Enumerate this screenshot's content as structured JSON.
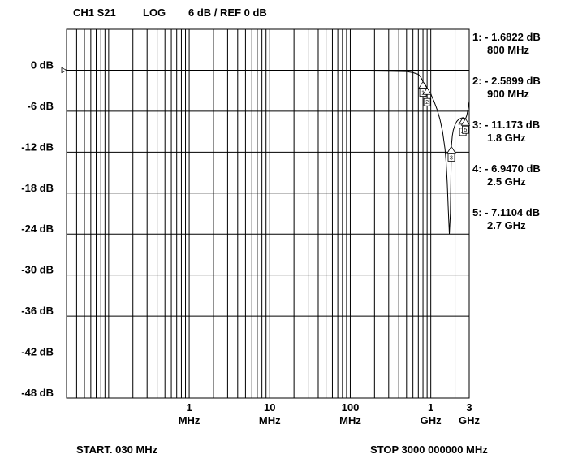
{
  "header": {
    "channel": "CH1 S21",
    "format": "LOG",
    "scale": "6 dB / REF 0 dB"
  },
  "footer": {
    "start": "START. 030 MHz",
    "stop": "STOP  3000 000000 MHz"
  },
  "chart_data": {
    "type": "line",
    "title": "",
    "xscale": "log",
    "xlim_mhz": [
      0.03,
      3000
    ],
    "ylim_db": [
      -48,
      6
    ],
    "grid": true,
    "reference_level_db": 0,
    "y_ticks": [
      {
        "value": 0,
        "label": "0 dB"
      },
      {
        "value": -6,
        "label": "-6 dB"
      },
      {
        "value": -12,
        "label": "-12 dB"
      },
      {
        "value": -18,
        "label": "-18 dB"
      },
      {
        "value": -24,
        "label": "-24 dB"
      },
      {
        "value": -30,
        "label": "-30 dB"
      },
      {
        "value": -36,
        "label": "-36 dB"
      },
      {
        "value": -42,
        "label": "-42 dB"
      },
      {
        "value": -48,
        "label": "-48 dB"
      }
    ],
    "x_ticks": [
      {
        "value": 1,
        "num": "1",
        "unit": "MHz"
      },
      {
        "value": 10,
        "num": "10",
        "unit": "MHz"
      },
      {
        "value": 100,
        "num": "100",
        "unit": "MHz"
      },
      {
        "value": 1000,
        "num": "1",
        "unit": "GHz"
      },
      {
        "value": 3000,
        "num": "3",
        "unit": "GHz"
      }
    ],
    "series": [
      {
        "x": [
          0.03,
          1,
          10,
          100,
          300,
          500,
          600,
          700,
          750,
          800,
          850,
          900,
          1000,
          1100,
          1200,
          1300,
          1400,
          1500,
          1550,
          1600,
          1650,
          1700,
          1750,
          1800,
          1850,
          1900,
          2000,
          2100,
          2200,
          2300,
          2400,
          2500,
          2600,
          2700,
          2800,
          2900,
          3000
        ],
        "y": [
          -0.1,
          -0.1,
          -0.1,
          -0.1,
          -0.15,
          -0.2,
          -0.35,
          -0.6,
          -1.0,
          -1.68,
          -2.1,
          -2.59,
          -3.5,
          -4.6,
          -5.8,
          -7.2,
          -9.0,
          -11.5,
          -13.5,
          -16.5,
          -20.5,
          -24.0,
          -21.0,
          -11.17,
          -9.6,
          -8.8,
          -8.0,
          -7.5,
          -7.25,
          -7.1,
          -7.0,
          -6.95,
          -7.0,
          -7.11,
          -6.6,
          -5.7,
          -4.5
        ]
      }
    ],
    "markers": [
      {
        "id": "1",
        "freq_mhz": 800,
        "db": -1.6822,
        "readout": "1: - 1.6822 dB",
        "freq_label": "800 MHz"
      },
      {
        "id": "2",
        "freq_mhz": 900,
        "db": -2.5899,
        "readout": "2: - 2.5899 dB",
        "freq_label": "900 MHz"
      },
      {
        "id": "3",
        "freq_mhz": 1800,
        "db": -11.173,
        "readout": "3: - 11.173 dB",
        "freq_label": "1.8 GHz"
      },
      {
        "id": "4",
        "freq_mhz": 2500,
        "db": -6.947,
        "readout": "4: - 6.9470 dB",
        "freq_label": "2.5 GHz"
      },
      {
        "id": "5",
        "freq_mhz": 2700,
        "db": -7.1104,
        "readout": "5: - 7.1104 dB",
        "freq_label": "2.7 GHz"
      }
    ]
  }
}
